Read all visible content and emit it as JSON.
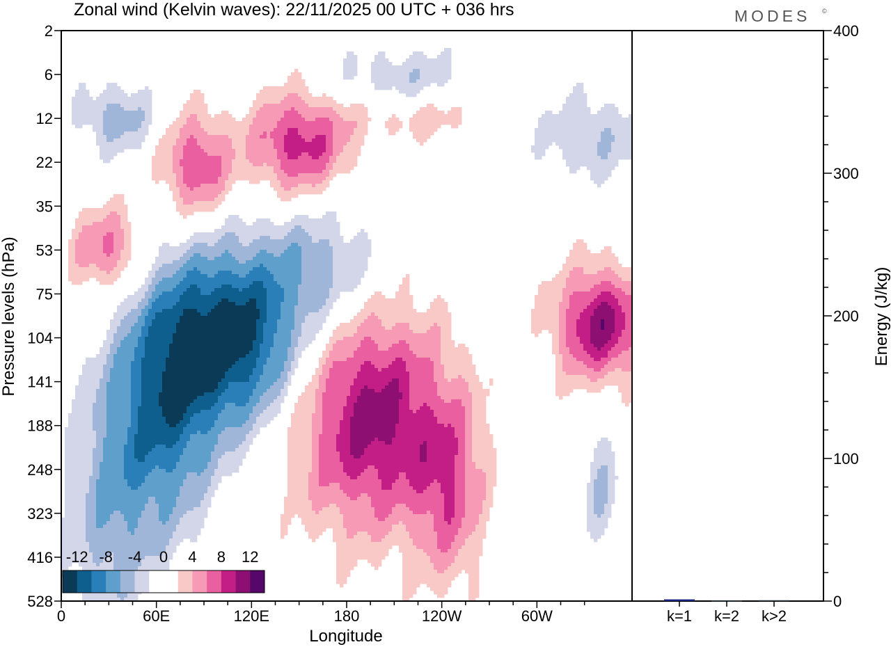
{
  "chart_data": {
    "type": "heatmap",
    "title": "Zonal wind (Kelvin waves):  22/11/2025  00 UTC  + 036 hrs",
    "logo": "MODES",
    "logo_mark": "©",
    "xlabel": "Longitude",
    "ylabel": "Pressure levels (hPa)",
    "x_ticks": [
      "0",
      "60E",
      "120E",
      "180",
      "120W",
      "60W"
    ],
    "x_tick_values": [
      0,
      60,
      120,
      180,
      240,
      300
    ],
    "xlim": [
      0,
      360
    ],
    "y_ticks": [
      "2",
      "6",
      "12",
      "22",
      "35",
      "53",
      "75",
      "104",
      "141",
      "188",
      "248",
      "323",
      "416",
      "528"
    ],
    "y_scale": "level index (top 2 hPa to bottom 528 hPa)",
    "colorbar": {
      "labels": [
        "-12",
        "-8",
        "-4",
        "0",
        "4",
        "8",
        "12"
      ],
      "colors": [
        "#0b3a57",
        "#0f5f8e",
        "#2a7fb8",
        "#5f9fcb",
        "#9fb6d8",
        "#d3d6e8",
        "#ffffff",
        "#ffffff",
        "#f9c9c7",
        "#f79ab5",
        "#ea5f9f",
        "#c21e86",
        "#8e0f72",
        "#55086a"
      ]
    },
    "anomalies": [
      {
        "lon": 108,
        "level": 7.0,
        "value": -13,
        "spread_lon": 45,
        "spread_level": 2.0
      },
      {
        "lon": 65,
        "level": 8.6,
        "value": -9,
        "spread_lon": 32,
        "spread_level": 2.8
      },
      {
        "lon": 30,
        "level": 10.8,
        "value": -5,
        "spread_lon": 28,
        "spread_level": 3.0
      },
      {
        "lon": 165,
        "level": 5.4,
        "value": -5,
        "spread_lon": 40,
        "spread_level": 1.5
      },
      {
        "lon": 195,
        "level": 8.8,
        "value": 11,
        "spread_lon": 48,
        "spread_level": 2.6
      },
      {
        "lon": 245,
        "level": 10.5,
        "value": 6,
        "spread_lon": 22,
        "spread_level": 2.2
      },
      {
        "lon": 340,
        "level": 6.7,
        "value": 11,
        "spread_lon": 28,
        "spread_level": 1.3
      },
      {
        "lon": 85,
        "level": 3.1,
        "value": 8,
        "spread_lon": 22,
        "spread_level": 1.2
      },
      {
        "lon": 150,
        "level": 2.6,
        "value": 9,
        "spread_lon": 32,
        "spread_level": 1.2
      },
      {
        "lon": 30,
        "level": 5.0,
        "value": 7,
        "spread_lon": 24,
        "spread_level": 1.0
      },
      {
        "lon": 215,
        "level": 1.2,
        "value": -4,
        "spread_lon": 45,
        "spread_level": 0.8
      },
      {
        "lon": 35,
        "level": 2.0,
        "value": -5,
        "spread_lon": 25,
        "spread_level": 0.8
      },
      {
        "lon": 225,
        "level": 1.9,
        "value": 4,
        "spread_lon": 45,
        "spread_level": 0.6
      },
      {
        "lon": 335,
        "level": 2.4,
        "value": -4,
        "spread_lon": 35,
        "spread_level": 1.0
      },
      {
        "lon": 340,
        "level": 10.3,
        "value": -4,
        "spread_lon": 12,
        "spread_level": 1.5
      }
    ],
    "energy_panel": {
      "ylabel": "Energy (J/kg)",
      "ylim": [
        0,
        400
      ],
      "y_ticks": [
        "0",
        "100",
        "200",
        "300",
        "400"
      ],
      "categories": [
        "k=1",
        "k=2",
        "k>2"
      ],
      "values": [
        1.2,
        0.3,
        0.6
      ],
      "bar_colors": [
        "#1a237e",
        "#263238",
        "#263238"
      ]
    }
  }
}
